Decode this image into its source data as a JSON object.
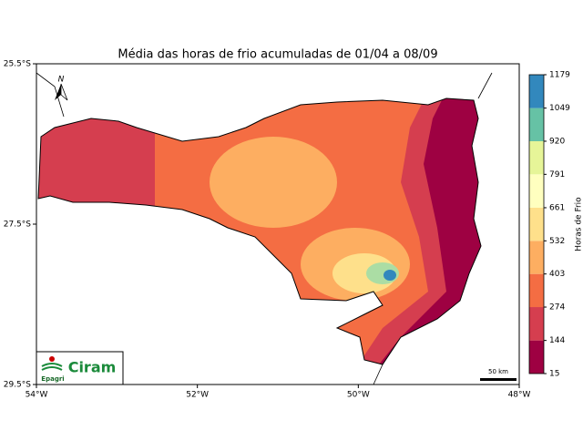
{
  "title": "Média das horas de frio acumuladas de 01/04 a 08/09",
  "map": {
    "xlim": [
      -54,
      -48
    ],
    "ylim": [
      -29.5,
      -25.5
    ],
    "xticks": [
      {
        "value": -54,
        "label": "54°W"
      },
      {
        "value": -52,
        "label": "52°W"
      },
      {
        "value": -50,
        "label": "50°W"
      },
      {
        "value": -48,
        "label": "48°W"
      }
    ],
    "yticks": [
      {
        "value": -25.5,
        "label": "25.5°S"
      },
      {
        "value": -27.5,
        "label": "27.5°S"
      },
      {
        "value": -29.5,
        "label": "29.5°S"
      }
    ]
  },
  "colorbar": {
    "label": "Horas de Frio",
    "ticks": [
      15,
      144,
      274,
      403,
      532,
      661,
      791,
      920,
      1049,
      1179
    ],
    "colors": [
      "#9e0142",
      "#d53e4f",
      "#f46d43",
      "#fdae61",
      "#fee08b",
      "#ffffbf",
      "#e6f598",
      "#66c2a5",
      "#3288bd",
      "#5e4fa2"
    ]
  },
  "scale_bar": "50 km",
  "logo": {
    "org": "Epagri",
    "name": "Ciram"
  }
}
